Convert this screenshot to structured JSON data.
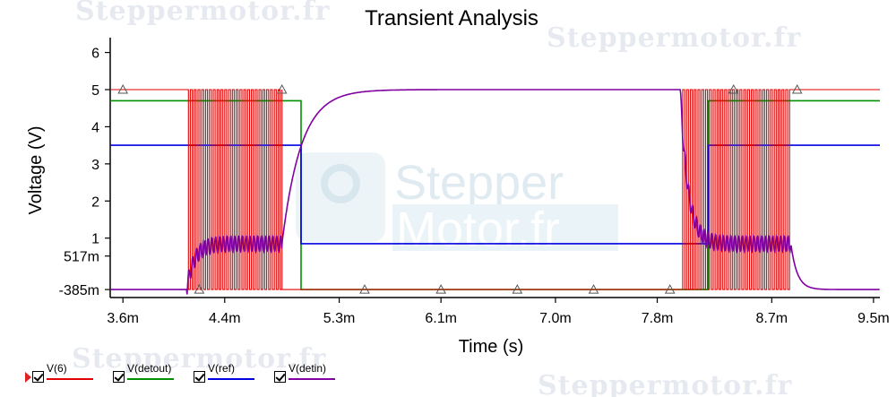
{
  "chart_data": {
    "type": "line",
    "title": "Transient Analysis",
    "xlabel": "Time (s)",
    "ylabel": "Voltage (V)",
    "xlim": [
      3.5,
      9.55
    ],
    "ylim": [
      -0.6,
      6.4
    ],
    "x_ticks": [
      {
        "v": 3.6,
        "label": "3.6m"
      },
      {
        "v": 4.4,
        "label": "4.4m"
      },
      {
        "v": 5.3,
        "label": "5.3m"
      },
      {
        "v": 6.1,
        "label": "6.1m"
      },
      {
        "v": 7.0,
        "label": "7.0m"
      },
      {
        "v": 7.8,
        "label": "7.8m"
      },
      {
        "v": 8.7,
        "label": "8.7m"
      },
      {
        "v": 9.5,
        "label": "9.5m"
      }
    ],
    "y_ticks": [
      {
        "v": 6,
        "label": "6"
      },
      {
        "v": 5,
        "label": "5"
      },
      {
        "v": 4,
        "label": "4"
      },
      {
        "v": 3,
        "label": "3"
      },
      {
        "v": 2,
        "label": "2"
      },
      {
        "v": 1,
        "label": "1"
      },
      {
        "v": 0.517,
        "label": "517m"
      },
      {
        "v": -0.385,
        "label": "-385m"
      }
    ],
    "grid": false,
    "legend_position": "bottom-left",
    "series": [
      {
        "name": "V(6)",
        "color": "#e00000",
        "high": 5.0,
        "low": -0.385,
        "bursts": [
          [
            4.1,
            4.85
          ],
          [
            8.0,
            8.85
          ]
        ],
        "pulse_period": 0.03
      },
      {
        "name": "V(detout)",
        "color": "#009000",
        "points": [
          [
            3.5,
            4.7
          ],
          [
            5.0,
            4.7
          ],
          [
            5.0,
            -0.385
          ],
          [
            8.2,
            -0.385
          ],
          [
            8.2,
            4.7
          ],
          [
            9.55,
            4.7
          ]
        ]
      },
      {
        "name": "V(ref)",
        "color": "#0000e0",
        "points": [
          [
            3.5,
            3.5
          ],
          [
            5.0,
            3.5
          ],
          [
            5.0,
            0.85
          ],
          [
            8.2,
            0.85
          ],
          [
            8.2,
            3.5
          ],
          [
            9.55,
            3.5
          ]
        ]
      },
      {
        "name": "V(detin)",
        "color": "#8000a0",
        "low": -0.385,
        "high": 5.0,
        "mid": 0.85,
        "ripple": 0.22,
        "rise_time": 4.85,
        "tau_rise": 0.15,
        "fall_time": 8.85,
        "tau_fall": 0.05,
        "ripple_start": 4.1,
        "ripple_end": 4.85,
        "ripple2_start": 8.0,
        "ripple2_end": 8.85
      }
    ],
    "triangle_markers": [
      {
        "x": 3.6,
        "y": 5.0
      },
      {
        "x": 4.85,
        "y": 5.0
      },
      {
        "x": 4.2,
        "y": -0.385
      },
      {
        "x": 5.5,
        "y": -0.385
      },
      {
        "x": 6.1,
        "y": -0.385
      },
      {
        "x": 6.7,
        "y": -0.385
      },
      {
        "x": 7.3,
        "y": -0.385
      },
      {
        "x": 7.9,
        "y": -0.385
      },
      {
        "x": 8.4,
        "y": 5.0
      },
      {
        "x": 8.9,
        "y": 5.0
      }
    ]
  },
  "watermarks": {
    "top_left": "Steppermotor.fr",
    "top_right": "Steppermotor.fr",
    "bottom_left": "Steppermotor.fr",
    "bottom_right": "Steppermotor.fr",
    "center_line1": "Stepper",
    "center_line2": "Motor.fr"
  },
  "legend": [
    {
      "name": "V(6)",
      "color": "#e00000"
    },
    {
      "name": "V(detout)",
      "color": "#009000"
    },
    {
      "name": "V(ref)",
      "color": "#0000e0"
    },
    {
      "name": "V(detin)",
      "color": "#8000a0"
    }
  ]
}
